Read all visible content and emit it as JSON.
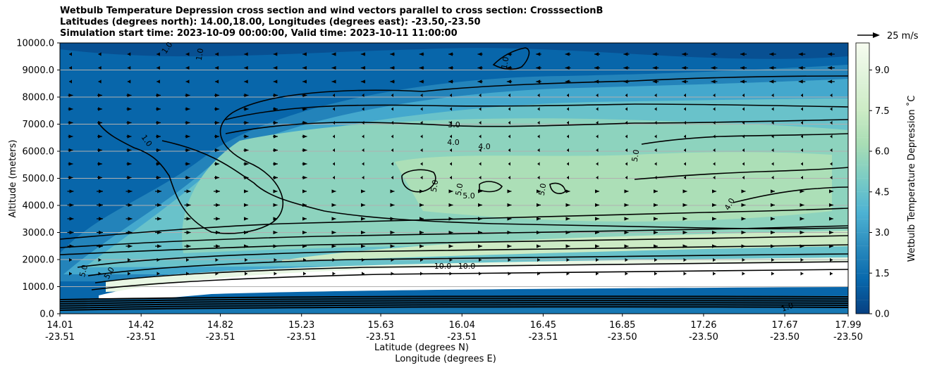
{
  "chart_data": {
    "type": "heatmap",
    "title_lines": [
      "Wetbulb Temperature Depression cross section and wind vectors parallel to cross section: CrosssectionB",
      "Latitudes (degrees north): 14.00,18.00, Longitudes (degrees east): -23.50,-23.50",
      "Simulation start time: 2023-10-09 00:00:00, Valid time: 2023-10-11 11:00:00"
    ],
    "xlabel": "Latitude (degrees N)",
    "xlabel2": "Longitude (degrees E)",
    "ylabel": "Altitude (meters)",
    "colorbar_label": "Wetbulb Temperature Depression ˚C",
    "quiver_key": "25 m/s",
    "ylim": [
      0,
      10000
    ],
    "yticks": [
      "0.0",
      "1000.0",
      "2000.0",
      "3000.0",
      "4000.0",
      "5000.0",
      "6000.0",
      "7000.0",
      "8000.0",
      "9000.0",
      "10000.0"
    ],
    "xticks": [
      {
        "lat": "14.01",
        "lon": "-23.51"
      },
      {
        "lat": "14.42",
        "lon": "-23.51"
      },
      {
        "lat": "14.82",
        "lon": "-23.51"
      },
      {
        "lat": "15.23",
        "lon": "-23.51"
      },
      {
        "lat": "15.63",
        "lon": "-23.51"
      },
      {
        "lat": "16.04",
        "lon": "-23.51"
      },
      {
        "lat": "16.45",
        "lon": "-23.51"
      },
      {
        "lat": "16.85",
        "lon": "-23.50"
      },
      {
        "lat": "17.26",
        "lon": "-23.50"
      },
      {
        "lat": "17.67",
        "lon": "-23.50"
      },
      {
        "lat": "17.99",
        "lon": "-23.50"
      }
    ],
    "colorbar_ticks": [
      "0.0",
      "1.5",
      "3.0",
      "4.5",
      "6.0",
      "7.5",
      "9.0"
    ],
    "colorbar_range": [
      0,
      10
    ],
    "colormap": [
      "#084081",
      "#0868ac",
      "#2b8cbe",
      "#4eb3d3",
      "#7bccc4",
      "#a8ddb5",
      "#ccebc5",
      "#e0f3db",
      "#f7fcf0"
    ],
    "contour_labels": [
      "1.0",
      "3.0",
      "4.0",
      "5.0",
      "10.0"
    ],
    "grid": "horizontal"
  }
}
